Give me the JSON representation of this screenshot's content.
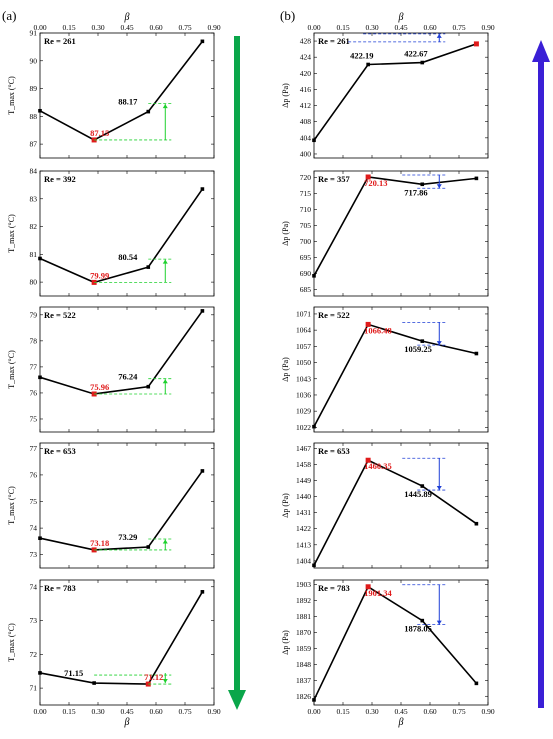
{
  "panel_labels": {
    "left": "(a)",
    "right": "(b)"
  },
  "x_axis": {
    "label": "β",
    "ticks": [
      "0.00",
      "0.15",
      "0.30",
      "0.45",
      "0.60",
      "0.75",
      "0.90"
    ],
    "tick_values": [
      0,
      0.15,
      0.3,
      0.45,
      0.6,
      0.75,
      0.9
    ],
    "range": [
      0,
      0.9
    ]
  },
  "arrow_colors": {
    "left": "#0aa64a",
    "right": "#3a1fd6"
  },
  "chart_data": [
    {
      "type": "line",
      "column": "a",
      "re_label": "Re = 261",
      "ylabel": "T_max (°C)",
      "ylim": [
        86.5,
        91
      ],
      "yticks": [
        87,
        88,
        89,
        90,
        91
      ],
      "x": [
        0,
        0.28,
        0.56,
        0.84
      ],
      "y": [
        88.2,
        87.15,
        88.17,
        90.7
      ],
      "highlight": 1,
      "red_label": "87.15",
      "black_label": "88.17",
      "black_label_index": 2,
      "arrow": {
        "dir": "up",
        "color": "#1ed12e"
      }
    },
    {
      "type": "line",
      "column": "a",
      "re_label": "Re = 392",
      "ylabel": "T_max (°C)",
      "ylim": [
        79.5,
        84
      ],
      "yticks": [
        80,
        81,
        82,
        83,
        84
      ],
      "x": [
        0,
        0.28,
        0.56,
        0.84
      ],
      "y": [
        80.85,
        79.99,
        80.54,
        83.35
      ],
      "highlight": 1,
      "red_label": "79.99",
      "black_label": "80.54",
      "black_label_index": 2,
      "arrow": {
        "dir": "up",
        "color": "#1ed12e"
      }
    },
    {
      "type": "line",
      "column": "a",
      "re_label": "Re = 522",
      "ylabel": "T_max (°C)",
      "ylim": [
        74.5,
        79.3
      ],
      "yticks": [
        75,
        76,
        77,
        78,
        79
      ],
      "x": [
        0,
        0.28,
        0.56,
        0.84
      ],
      "y": [
        76.6,
        75.96,
        76.24,
        79.15
      ],
      "highlight": 1,
      "red_label": "75.96",
      "black_label": "76.24",
      "black_label_index": 2,
      "arrow": {
        "dir": "up",
        "color": "#1ed12e"
      }
    },
    {
      "type": "line",
      "column": "a",
      "re_label": "Re = 653",
      "ylabel": "T_max (°C)",
      "ylim": [
        72.5,
        77.2
      ],
      "yticks": [
        73,
        74,
        75,
        76,
        77
      ],
      "x": [
        0,
        0.28,
        0.56,
        0.84
      ],
      "y": [
        73.62,
        73.18,
        73.29,
        76.15
      ],
      "highlight": 1,
      "red_label": "73.18",
      "black_label": "73.29",
      "black_label_index": 2,
      "arrow": {
        "dir": "up",
        "color": "#1ed12e"
      }
    },
    {
      "type": "line",
      "column": "a",
      "re_label": "Re = 783",
      "ylabel": "T_max (°C)",
      "ylim": [
        70.5,
        74.2
      ],
      "yticks": [
        71,
        72,
        73,
        74
      ],
      "x": [
        0,
        0.28,
        0.56,
        0.84
      ],
      "y": [
        71.45,
        71.15,
        71.12,
        73.85
      ],
      "highlight": 2,
      "red_label": "71.12",
      "black_label": "71.15",
      "black_label_index": 1,
      "arrow": {
        "dir": "down",
        "color": "#1ed12e"
      }
    },
    {
      "type": "line",
      "column": "b",
      "re_label": "Re = 261",
      "ylabel": "Δp (Pa)",
      "ylim": [
        399,
        430
      ],
      "yticks": [
        400,
        404,
        408,
        412,
        416,
        420,
        424,
        428
      ],
      "x": [
        0,
        0.28,
        0.56,
        0.84
      ],
      "y": [
        403.4,
        422.19,
        422.67,
        427.3
      ],
      "highlight": 3,
      "red_label": "",
      "black_label": "422.19",
      "black_label_index": 1,
      "extra_label": "422.67",
      "extra_label_index": 2,
      "arrow": {
        "dir": "up",
        "color": "#1f3fd6"
      }
    },
    {
      "type": "line",
      "column": "b",
      "re_label": "Re = 357",
      "ylabel": "Δp (Pa)",
      "ylim": [
        683,
        722
      ],
      "yticks": [
        685,
        690,
        695,
        700,
        705,
        710,
        715,
        720
      ],
      "x": [
        0,
        0.28,
        0.56,
        0.84
      ],
      "y": [
        689.3,
        720.13,
        717.86,
        719.7
      ],
      "highlight": 1,
      "red_label": "720.13",
      "black_label": "717.86",
      "black_label_index": 2,
      "arrow": {
        "dir": "down",
        "color": "#1f3fd6"
      }
    },
    {
      "type": "line",
      "column": "b",
      "re_label": "Re = 522",
      "ylabel": "Δp (Pa)",
      "ylim": [
        1020,
        1074
      ],
      "yticks": [
        1022,
        1029,
        1036,
        1043,
        1050,
        1057,
        1064,
        1071
      ],
      "x": [
        0,
        0.28,
        0.56,
        0.84
      ],
      "y": [
        1022.3,
        1066.48,
        1059.25,
        1053.9
      ],
      "highlight": 1,
      "red_label": "1066.48",
      "black_label": "1059.25",
      "black_label_index": 2,
      "arrow": {
        "dir": "down",
        "color": "#1f3fd6"
      }
    },
    {
      "type": "line",
      "column": "b",
      "re_label": "Re = 653",
      "ylabel": "Δp (Pa)",
      "ylim": [
        1400,
        1470
      ],
      "yticks": [
        1404,
        1413,
        1422,
        1431,
        1440,
        1449,
        1458,
        1467
      ],
      "x": [
        0,
        0.28,
        0.56,
        0.84
      ],
      "y": [
        1401.5,
        1460.35,
        1445.89,
        1424.8
      ],
      "highlight": 1,
      "red_label": "1460.35",
      "black_label": "1445.89",
      "black_label_index": 2,
      "arrow": {
        "dir": "down",
        "color": "#1f3fd6"
      }
    },
    {
      "type": "line",
      "column": "b",
      "re_label": "Re = 783",
      "ylabel": "Δp (Pa)",
      "ylim": [
        1820,
        1906
      ],
      "yticks": [
        1826,
        1837,
        1848,
        1859,
        1870,
        1881,
        1892,
        1903
      ],
      "x": [
        0,
        0.28,
        0.56,
        0.84
      ],
      "y": [
        1823.5,
        1901.34,
        1878.05,
        1834.9
      ],
      "highlight": 1,
      "red_label": "1901.34",
      "black_label": "1878.05",
      "black_label_index": 2,
      "arrow": {
        "dir": "down",
        "color": "#1f3fd6"
      }
    }
  ]
}
